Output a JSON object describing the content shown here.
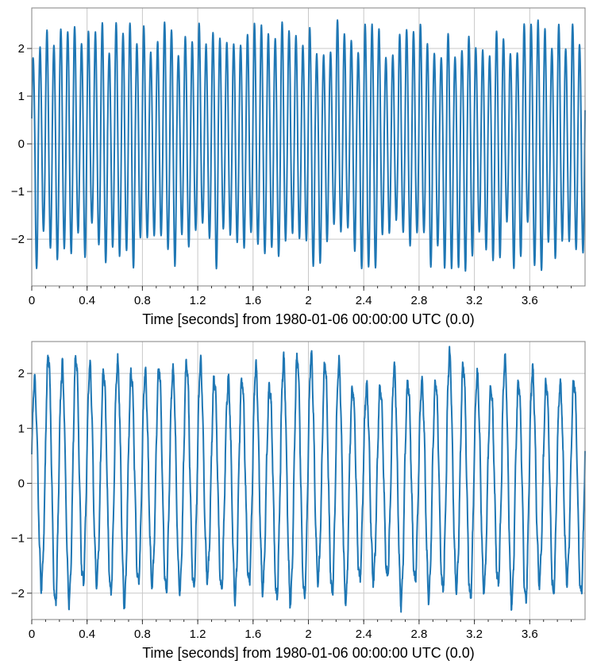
{
  "chart_data": [
    {
      "type": "line",
      "xlabel": "Time [seconds] from 1980-01-06 00:00:00 UTC (0.0)",
      "xlim": [
        0,
        4
      ],
      "ylim": [
        -2.98,
        2.85
      ],
      "xticks": [
        0,
        0.4,
        0.8,
        1.2,
        1.6,
        2,
        2.4,
        2.8,
        3.2,
        3.6
      ],
      "xtick_labels": [
        "0",
        "0.4",
        "0.8",
        "1.2",
        "1.6",
        "2",
        "2.4",
        "2.8",
        "3.2",
        "3.6"
      ],
      "yticks": [
        -2,
        -1,
        0,
        1,
        2
      ],
      "ytick_labels": [
        "−2",
        "−1",
        "0",
        "1",
        "2"
      ],
      "grid": true,
      "color": "#1f77b4",
      "series": [
        {
          "dominant_frequency_hz": 20,
          "peak_range": [
            1.8,
            2.6
          ],
          "trough_range": [
            -2.7,
            -1.6
          ]
        }
      ]
    },
    {
      "type": "line",
      "xlabel": "Time [seconds] from 1980-01-06 00:00:00 UTC (0.0)",
      "xlim": [
        0,
        4
      ],
      "ylim": [
        -2.48,
        2.58
      ],
      "xticks": [
        0,
        0.4,
        0.8,
        1.2,
        1.6,
        2,
        2.4,
        2.8,
        3.2,
        3.6
      ],
      "xtick_labels": [
        "0",
        "0.4",
        "0.8",
        "1.2",
        "1.6",
        "2",
        "2.4",
        "2.8",
        "3.2",
        "3.6"
      ],
      "yticks": [
        -2,
        -1,
        0,
        1,
        2
      ],
      "ytick_labels": [
        "−2",
        "−1",
        "0",
        "1",
        "2"
      ],
      "grid": true,
      "color": "#1f77b4",
      "series": [
        {
          "dominant_frequency_hz": 10,
          "peak_range": [
            1.7,
            2.35
          ],
          "trough_range": [
            -2.2,
            -1.7
          ]
        }
      ]
    }
  ]
}
